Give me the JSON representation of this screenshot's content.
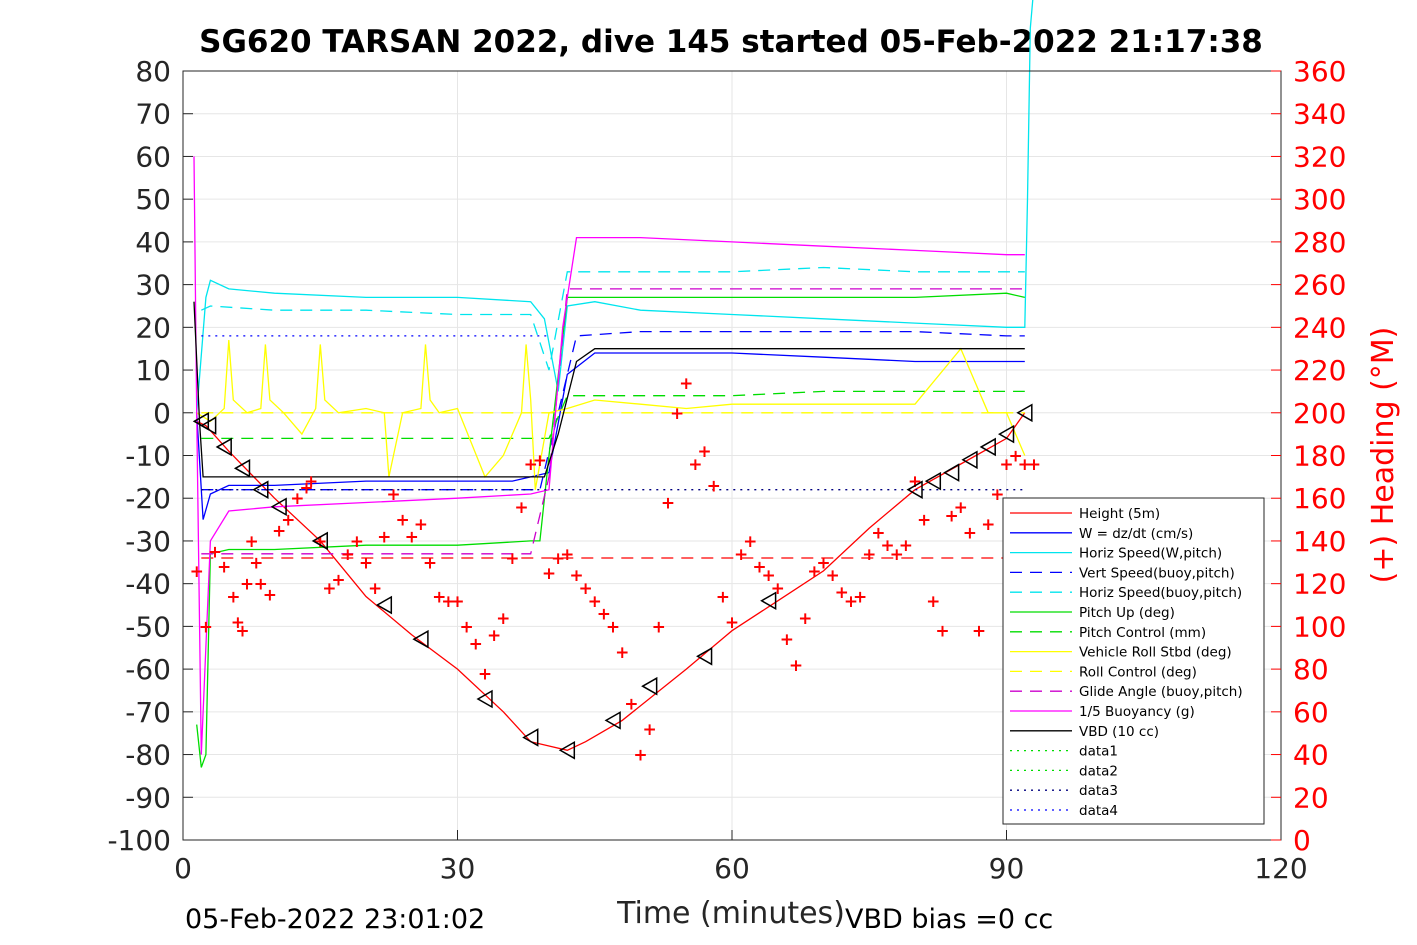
{
  "chart_data": {
    "type": "line",
    "title": "SG620 TARSAN 2022, dive 145 started 05-Feb-2022 21:17:38",
    "xlabel": "Time (minutes)",
    "ylabel": "",
    "y2label": "(+) Heading (°M)",
    "xlim": [
      0,
      120
    ],
    "ylim": [
      -100,
      80
    ],
    "y2lim": [
      0,
      360
    ],
    "xticks": [
      0,
      30,
      60,
      90,
      120
    ],
    "yticks": [
      80,
      70,
      60,
      50,
      40,
      30,
      20,
      10,
      0,
      -10,
      -20,
      -30,
      -40,
      -50,
      -60,
      -70,
      -80,
      -90,
      -100
    ],
    "y2ticks": [
      360,
      340,
      320,
      300,
      280,
      260,
      240,
      220,
      200,
      180,
      160,
      140,
      120,
      100,
      80,
      60,
      40,
      20,
      0
    ],
    "grid": true,
    "legend_position": "lower-right",
    "footer_left": "05-Feb-2022 23:01:02",
    "footer_right": "VBD bias =0 cc",
    "colors": {
      "red": "#ff0000",
      "blue": "#0000ff",
      "cyan": "#00e5ee",
      "green": "#00dd00",
      "yellow": "#ffff00",
      "magenta": "#ff00ff",
      "black": "#000000",
      "darknavy": "#000080",
      "grid": "#e6e6e6"
    },
    "series": [
      {
        "name": "Height (5m)",
        "color": "#ff0000",
        "style": "solid",
        "x": [
          1.5,
          2.5,
          5,
          10,
          15,
          20,
          25,
          30,
          35,
          38,
          40,
          42,
          44,
          48,
          55,
          60,
          65,
          70,
          75,
          80,
          85,
          90,
          92
        ],
        "y": [
          -2,
          -3,
          -9,
          -20,
          -30,
          -43,
          -52,
          -60,
          -70,
          -77,
          -78,
          -79,
          -77,
          -72,
          -60,
          -51,
          -44,
          -37,
          -27,
          -18,
          -12,
          -6,
          0
        ]
      },
      {
        "name": "W = dz/dt (cm/s)",
        "color": "#0000ff",
        "style": "solid",
        "x": [
          1.5,
          2.2,
          3,
          5,
          10,
          20,
          30,
          36,
          38,
          40,
          42,
          45,
          50,
          60,
          70,
          80,
          90,
          92
        ],
        "y": [
          0,
          -25,
          -19,
          -17,
          -17,
          -16,
          -16,
          -16,
          -15,
          -14,
          9,
          14,
          14,
          14,
          13,
          12,
          12,
          12
        ]
      },
      {
        "name": "Horiz Speed(W,pitch)",
        "color": "#00e5ee",
        "style": "solid",
        "x": [
          1.5,
          2.5,
          3,
          5,
          10,
          20,
          30,
          38,
          39.5,
          41,
          42,
          45,
          50,
          60,
          70,
          80,
          90,
          92,
          92.3,
          92.6,
          93
        ],
        "y": [
          0,
          27,
          31,
          29,
          28,
          27,
          27,
          26,
          22,
          5,
          25,
          26,
          24,
          23,
          22,
          21,
          20,
          20,
          50,
          90,
          100
        ]
      },
      {
        "name": "Vert Speed(buoy,pitch)",
        "color": "#0000ff",
        "style": "dashed",
        "x": [
          2,
          3,
          10,
          20,
          30,
          39,
          41,
          43,
          50,
          60,
          70,
          80,
          90,
          92
        ],
        "y": [
          -18,
          -18,
          -18,
          -18,
          -18,
          -18,
          0,
          18,
          19,
          19,
          19,
          19,
          18,
          18
        ]
      },
      {
        "name": "Horiz Speed(buoy,pitch)",
        "color": "#00e5ee",
        "style": "dashed",
        "x": [
          2,
          3,
          10,
          20,
          30,
          38,
          40,
          42,
          50,
          60,
          70,
          80,
          90,
          92
        ],
        "y": [
          24,
          25,
          24,
          24,
          23,
          23,
          10,
          33,
          33,
          33,
          34,
          33,
          33,
          33
        ]
      },
      {
        "name": "Pitch Up (deg)",
        "color": "#00dd00",
        "style": "solid",
        "x": [
          1.5,
          2,
          2.5,
          3,
          5,
          10,
          20,
          30,
          38,
          39,
          40,
          42,
          45,
          50,
          60,
          70,
          80,
          90,
          92
        ],
        "y": [
          -73,
          -83,
          -80,
          -33,
          -32,
          -32,
          -31,
          -31,
          -30,
          -30,
          -10,
          27,
          27,
          27,
          27,
          27,
          27,
          28,
          27
        ]
      },
      {
        "name": "Pitch Control (mm)",
        "color": "#00dd00",
        "style": "dashed",
        "x": [
          2,
          3,
          10,
          20,
          30,
          38,
          40,
          42,
          50,
          60,
          70,
          80,
          90,
          92
        ],
        "y": [
          -6,
          -6,
          -6,
          -6,
          -6,
          -6,
          -6,
          4,
          4,
          4,
          5,
          5,
          5,
          5
        ]
      },
      {
        "name": "Vehicle Roll Stbd (deg)",
        "color": "#ffff00",
        "style": "solid",
        "x": [
          1.5,
          3,
          4.5,
          5,
          5.5,
          7,
          8.5,
          9,
          9.5,
          11,
          13,
          14.5,
          15,
          15.5,
          17,
          20,
          22,
          22.5,
          24,
          26,
          26.5,
          27,
          28,
          30,
          33,
          35,
          37,
          37.5,
          38,
          38.5,
          40,
          42,
          45,
          50,
          55,
          60,
          70,
          80,
          85,
          88,
          90,
          92
        ],
        "y": [
          0,
          -2,
          1,
          17,
          3,
          0,
          1,
          16,
          3,
          0,
          -5,
          1,
          16,
          3,
          0,
          1,
          0,
          -15,
          0,
          1,
          16,
          3,
          0,
          1,
          -15,
          -10,
          0,
          16,
          3,
          -18,
          0,
          1,
          3,
          2,
          1,
          2,
          2,
          2,
          15,
          0,
          0,
          -10
        ]
      },
      {
        "name": "Roll Control (deg)",
        "color": "#ffff00",
        "style": "dashed",
        "x": [
          2,
          92
        ],
        "y": [
          0,
          0
        ]
      },
      {
        "name": "Glide Angle (buoy,pitch)",
        "color": "#cc00cc",
        "style": "dashed",
        "x": [
          2,
          3,
          10,
          20,
          30,
          38,
          40,
          42,
          50,
          60,
          70,
          80,
          90,
          92
        ],
        "y": [
          -33,
          -33,
          -33,
          -33,
          -33,
          -33,
          -15,
          29,
          29,
          29,
          29,
          29,
          29,
          29
        ]
      },
      {
        "name": "1/5 Buoyancy (g)",
        "color": "#ff00ff",
        "style": "solid",
        "x": [
          1.2,
          1.5,
          2,
          3,
          5,
          10,
          20,
          30,
          38,
          40,
          41.5,
          43,
          50,
          60,
          70,
          80,
          90,
          92
        ],
        "y": [
          60,
          0,
          -80,
          -30,
          -23,
          -22,
          -21,
          -20,
          -19,
          -18,
          20,
          41,
          41,
          40,
          39,
          38,
          37,
          37
        ]
      },
      {
        "name": "VBD (10 cc)",
        "color": "#000000",
        "style": "solid",
        "x": [
          1.2,
          1.8,
          2.2,
          5,
          10,
          20,
          30,
          38,
          39.5,
          41,
          43,
          45,
          50,
          60,
          70,
          80,
          90,
          92
        ],
        "y": [
          26,
          -2,
          -15,
          -15,
          -15,
          -15,
          -15,
          -15,
          -15,
          -5,
          12,
          15,
          15,
          15,
          15,
          15,
          15,
          15
        ]
      },
      {
        "name": "data1",
        "color": "#00dd00",
        "style": "dotted",
        "x": [],
        "y": []
      },
      {
        "name": "data2",
        "color": "#00dd00",
        "style": "dotted",
        "x": [],
        "y": []
      },
      {
        "name": "data3",
        "color": "#000080",
        "style": "dotted",
        "x": [
          2,
          92
        ],
        "y": [
          -18,
          -18
        ]
      },
      {
        "name": "data4",
        "color": "#0000ff",
        "style": "dotted",
        "x": [
          2,
          40
        ],
        "y": [
          18,
          18
        ]
      }
    ],
    "extra_lines": [
      {
        "color": "#ff0000",
        "style": "dashed",
        "x": [
          2,
          92
        ],
        "y": [
          -34,
          -34
        ]
      }
    ],
    "heading": {
      "marker": "+",
      "color": "#ff0000",
      "axis": "right",
      "x": [
        1.5,
        2.5,
        3.5,
        4.5,
        5.5,
        6.0,
        6.5,
        7.0,
        7.5,
        8.0,
        8.5,
        9.5,
        10.5,
        11.5,
        12.5,
        13.5,
        14.0,
        15.0,
        16.0,
        17.0,
        18.0,
        19.0,
        20.0,
        21.0,
        22.0,
        23.0,
        24.0,
        25.0,
        26.0,
        27.0,
        28.0,
        29.0,
        30.0,
        31.0,
        32.0,
        33.0,
        34.0,
        35.0,
        36.0,
        37.0,
        38.0,
        39.0,
        40.0,
        41.0,
        42.0,
        43.0,
        44.0,
        45.0,
        46.0,
        47.0,
        48.0,
        49.0,
        50.0,
        51.0,
        52.0,
        53.0,
        54.0,
        55.0,
        56.0,
        57.0,
        58.0,
        59.0,
        60.0,
        61.0,
        62.0,
        63.0,
        64.0,
        65.0,
        66.0,
        67.0,
        68.0,
        69.0,
        70.0,
        71.0,
        72.0,
        73.0,
        74.0,
        75.0,
        76.0,
        77.0,
        78.0,
        79.0,
        80.0,
        81.0,
        82.0,
        83.0,
        84.0,
        85.0,
        86.0,
        87.0,
        88.0,
        89.0,
        90.0,
        91.0,
        92.0,
        93.0
      ],
      "y": [
        126,
        100,
        135,
        128,
        114,
        102,
        98,
        120,
        140,
        130,
        120,
        115,
        145,
        150,
        160,
        165,
        168,
        140,
        118,
        122,
        134,
        140,
        130,
        118,
        142,
        162,
        150,
        142,
        148,
        130,
        114,
        112,
        112,
        100,
        92,
        78,
        96,
        104,
        132,
        156,
        176,
        178,
        125,
        132,
        134,
        124,
        118,
        112,
        106,
        100,
        88,
        64,
        40,
        52,
        100,
        158,
        200,
        214,
        176,
        182,
        166,
        114,
        102,
        134,
        140,
        128,
        124,
        118,
        94,
        82,
        104,
        126,
        130,
        124,
        116,
        112,
        114,
        134,
        144,
        138,
        134,
        138,
        168,
        150,
        112,
        98,
        152,
        156,
        144,
        98,
        148,
        162,
        176,
        180,
        176,
        176
      ]
    },
    "triangles": {
      "x": [
        2.0,
        2.8,
        4.5,
        6.5,
        8.5,
        10.5,
        15.0,
        22.0,
        26.0,
        33.0,
        38.0,
        42.0,
        47.0,
        51.0,
        57.0,
        64.0,
        80.0,
        82.0,
        84.0,
        86.0,
        88.0,
        90.0,
        92.0
      ],
      "y": [
        -2,
        -3,
        -8,
        -13,
        -18,
        -22,
        -30,
        -45,
        -53,
        -67,
        -76,
        -79,
        -72,
        -64,
        -57,
        -44,
        -18,
        -16,
        -14,
        -11,
        -8,
        -5,
        0
      ]
    }
  }
}
